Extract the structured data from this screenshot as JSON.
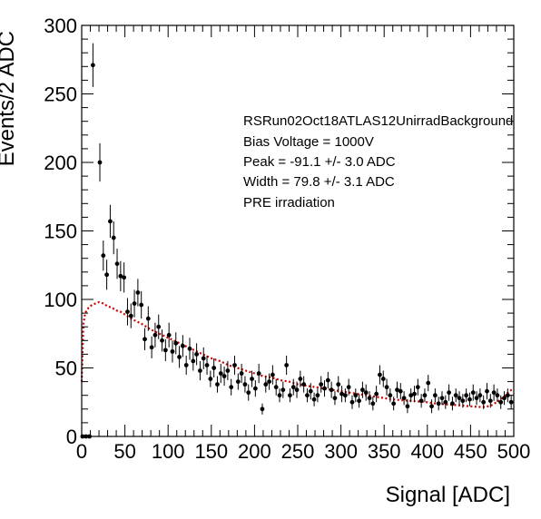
{
  "chart_data": {
    "type": "scatter",
    "xlabel": "Signal [ADC]",
    "ylabel": "Events/2 ADC",
    "xlim": [
      0,
      500
    ],
    "ylim": [
      0,
      300
    ],
    "xticks": [
      0,
      50,
      100,
      150,
      200,
      250,
      300,
      350,
      400,
      450,
      500
    ],
    "yticks": [
      0,
      50,
      100,
      150,
      200,
      250,
      300
    ],
    "grid": false,
    "legend": "none",
    "annotations": [
      "RSRun02Oct18ATLAS12UnirradBackground",
      "Bias Voltage = 1000V",
      "Peak = -91.1 +/- 3.0 ADC",
      "Width = 79.8 +/- 3.1 ADC",
      "PRE irradiation"
    ],
    "colors": {
      "data": "#000000",
      "fit": "#cc0000"
    },
    "series": [
      {
        "kind": "points-with-errors",
        "x": [
          1,
          5,
          9,
          13,
          21,
          25,
          29,
          33,
          37,
          41,
          45,
          49,
          53,
          57,
          61,
          65,
          69,
          73,
          77,
          81,
          85,
          89,
          93,
          97,
          101,
          105,
          109,
          113,
          117,
          121,
          125,
          129,
          133,
          137,
          141,
          145,
          149,
          153,
          157,
          161,
          165,
          169,
          173,
          177,
          181,
          185,
          189,
          193,
          197,
          201,
          205,
          209,
          213,
          217,
          221,
          225,
          229,
          233,
          237,
          241,
          245,
          249,
          253,
          257,
          261,
          265,
          269,
          273,
          277,
          281,
          285,
          289,
          293,
          297,
          301,
          305,
          309,
          313,
          317,
          321,
          325,
          329,
          333,
          337,
          341,
          345,
          349,
          353,
          357,
          361,
          365,
          369,
          373,
          377,
          381,
          385,
          389,
          393,
          397,
          401,
          405,
          409,
          413,
          417,
          421,
          425,
          429,
          433,
          437,
          441,
          445,
          449,
          453,
          457,
          461,
          465,
          469,
          473,
          477,
          481,
          485,
          489,
          493,
          497
        ],
        "y": [
          0,
          0,
          0,
          271,
          200,
          132,
          118,
          157,
          145,
          126,
          117,
          116,
          91,
          88,
          97,
          105,
          96,
          71,
          86,
          65,
          74,
          80,
          70,
          63,
          74,
          62,
          68,
          58,
          66,
          52,
          64,
          55,
          60,
          48,
          57,
          52,
          42,
          50,
          38,
          46,
          44,
          48,
          36,
          52,
          40,
          46,
          38,
          32,
          42,
          35,
          46,
          20,
          38,
          40,
          45,
          36,
          30,
          34,
          52,
          30,
          36,
          34,
          42,
          38,
          30,
          33,
          27,
          30,
          38,
          35,
          41,
          34,
          28,
          38,
          31,
          30,
          36,
          25,
          30,
          26,
          34,
          32,
          28,
          24,
          31,
          45,
          42,
          36,
          30,
          24,
          34,
          33,
          28,
          22,
          30,
          31,
          36,
          26,
          30,
          39,
          22,
          30,
          24,
          28,
          25,
          32,
          24,
          30,
          28,
          26,
          30,
          27,
          32,
          28,
          30,
          25,
          33,
          26,
          32,
          30,
          25,
          28,
          30,
          25
        ],
        "yerr": [
          0,
          0,
          0,
          16,
          14,
          11,
          11,
          12,
          12,
          11,
          11,
          11,
          10,
          9,
          10,
          10,
          10,
          8,
          9,
          8,
          9,
          9,
          8,
          8,
          9,
          8,
          8,
          8,
          8,
          7,
          8,
          7,
          8,
          7,
          8,
          7,
          6,
          7,
          6,
          7,
          7,
          7,
          6,
          7,
          6,
          7,
          6,
          6,
          6,
          6,
          7,
          4,
          6,
          6,
          7,
          6,
          5,
          6,
          7,
          5,
          6,
          6,
          6,
          6,
          5,
          6,
          5,
          5,
          6,
          6,
          6,
          6,
          5,
          6,
          6,
          5,
          6,
          5,
          5,
          5,
          6,
          6,
          5,
          5,
          6,
          7,
          6,
          6,
          5,
          5,
          6,
          6,
          5,
          5,
          5,
          6,
          6,
          5,
          5,
          6,
          5,
          5,
          5,
          5,
          5,
          6,
          5,
          5,
          5,
          5,
          5,
          5,
          6,
          5,
          5,
          5,
          6,
          5,
          6,
          5,
          5,
          5,
          5,
          5
        ]
      },
      {
        "kind": "fit-curve",
        "x": [
          0,
          2,
          4,
          8,
          12,
          16,
          20,
          25,
          30,
          35,
          40,
          45,
          50,
          60,
          70,
          80,
          90,
          100,
          110,
          120,
          130,
          140,
          150,
          160,
          170,
          180,
          190,
          200,
          210,
          220,
          230,
          240,
          250,
          260,
          270,
          280,
          290,
          300,
          310,
          320,
          330,
          340,
          350,
          360,
          370,
          380,
          390,
          400,
          410,
          420,
          430,
          440,
          450,
          460,
          465,
          470,
          475,
          480,
          485,
          490,
          495,
          500
        ],
        "y": [
          40,
          82,
          90,
          94,
          96,
          97,
          98,
          97,
          95,
          94,
          92,
          91,
          89,
          85,
          82,
          78,
          75,
          72,
          69,
          66,
          63,
          60,
          57,
          55,
          52,
          50,
          48,
          46,
          44,
          43,
          41,
          40,
          38,
          37,
          36,
          35,
          34,
          33,
          32,
          31,
          30,
          29,
          28,
          27,
          26.5,
          26,
          25.5,
          25,
          24,
          23.5,
          23,
          22.5,
          22,
          21.5,
          21.5,
          22,
          23,
          25,
          27,
          30,
          33,
          35
        ]
      }
    ]
  }
}
